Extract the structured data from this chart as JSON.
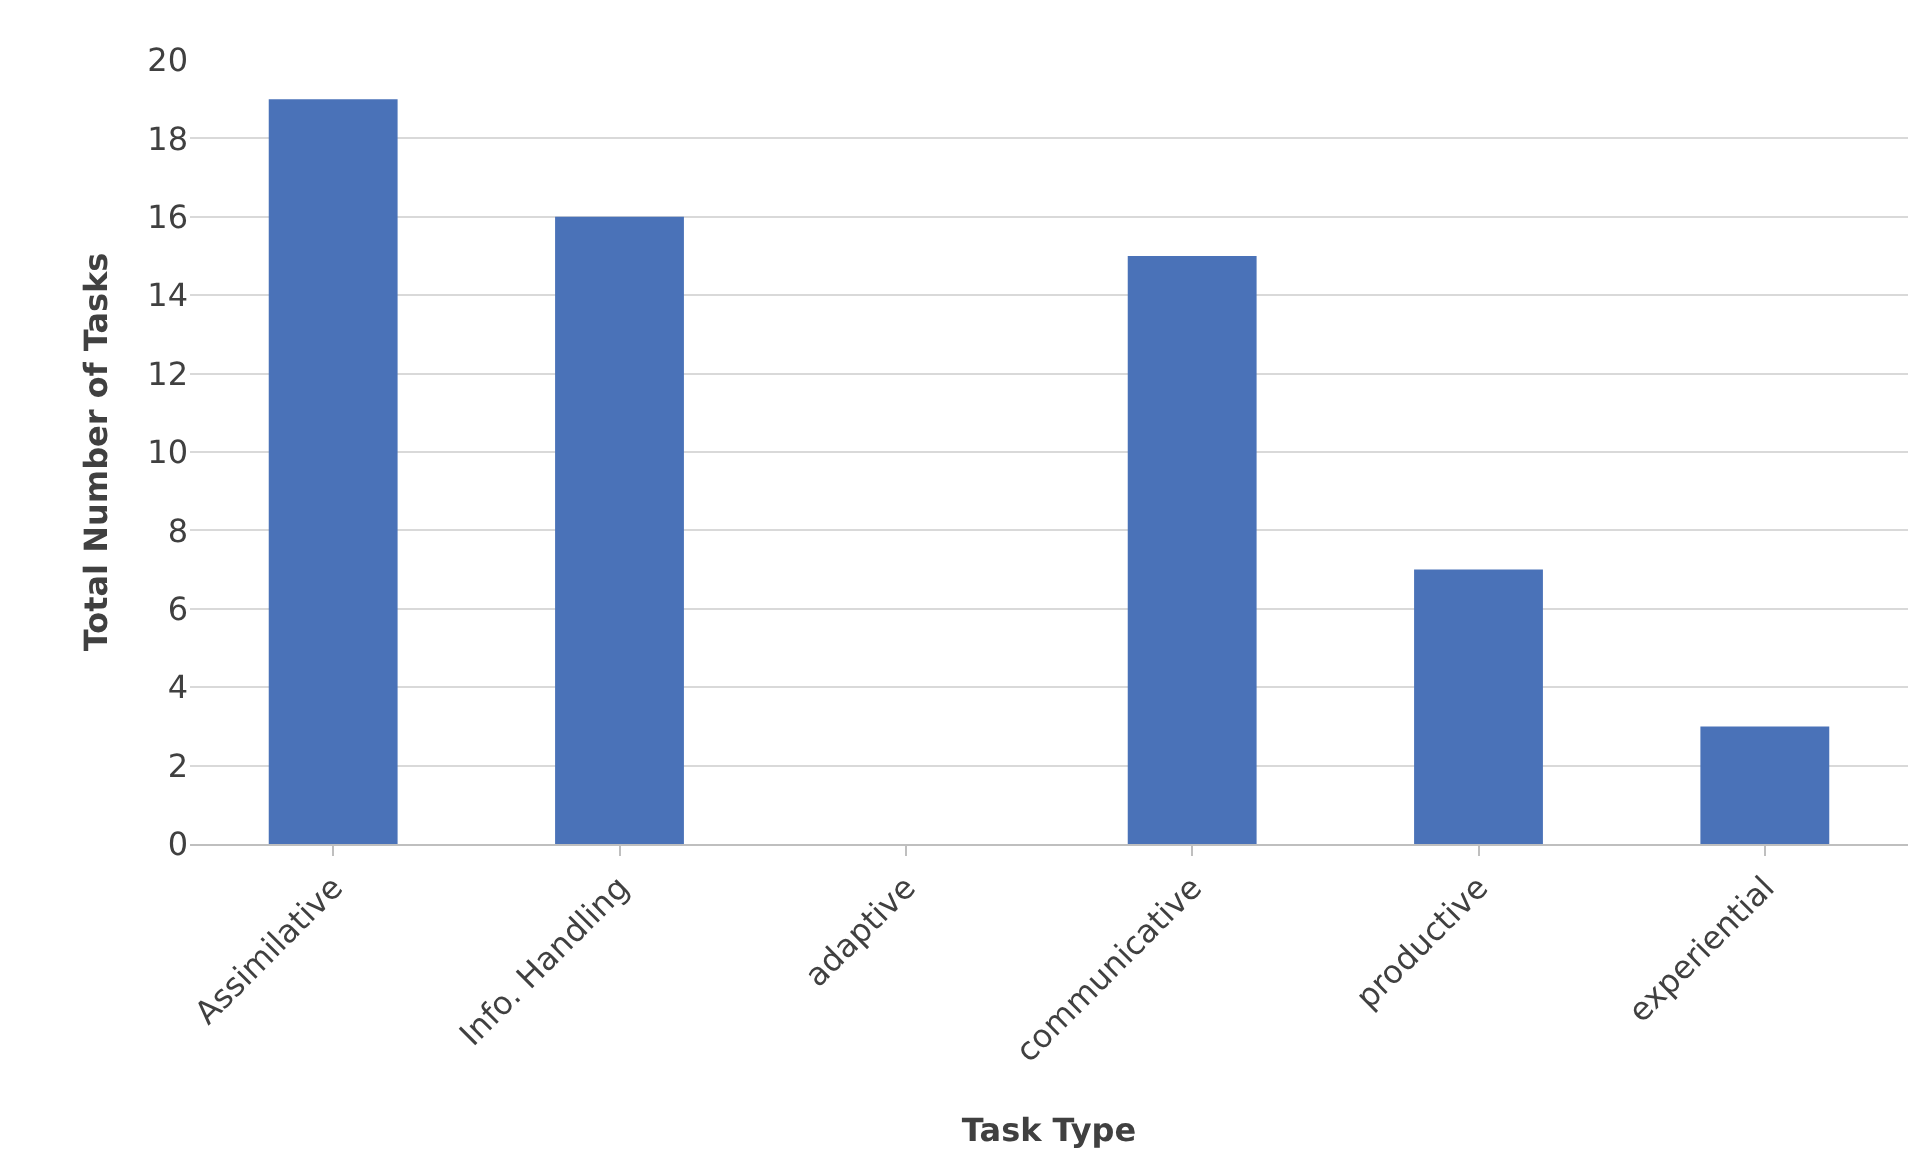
{
  "chart_data": {
    "type": "bar",
    "xlabel": "Task Type",
    "ylabel": "Total Number of Tasks",
    "categories": [
      "Assimilative",
      "Info. Handling",
      "adaptive",
      "communicative",
      "productive",
      "experiential"
    ],
    "values": [
      19,
      16,
      0,
      15,
      7,
      3
    ],
    "color": "#4a72b8",
    "ylim": [
      0,
      20
    ],
    "yticks": [
      0,
      2,
      4,
      6,
      8,
      10,
      12,
      14,
      16,
      18,
      20
    ],
    "grid": "y"
  }
}
